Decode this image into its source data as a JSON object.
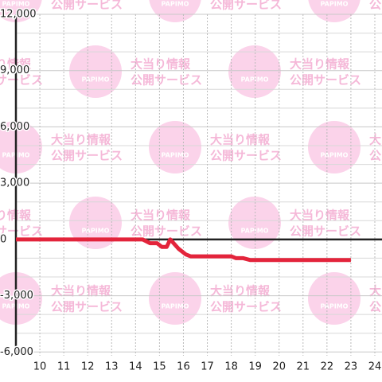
{
  "chart_data": {
    "type": "line",
    "watermark": {
      "line1": "大当り情報",
      "line2": "公開サービス",
      "logo": "PAPIMO"
    },
    "x": [
      9,
      14.3,
      14.6,
      14.9,
      15.1,
      15.3,
      15.45,
      15.8,
      16.1,
      16.3,
      18,
      18.2,
      18.5,
      18.8,
      23
    ],
    "series": [
      {
        "color": "#e3243b",
        "values": [
          0,
          0,
          -200,
          -200,
          -400,
          -400,
          0,
          -500,
          -800,
          -900,
          -900,
          -1000,
          -1000,
          -1100,
          -1100
        ]
      }
    ],
    "xlim": [
      9,
      24.3
    ],
    "xticks": [
      10,
      11,
      12,
      13,
      14,
      15,
      16,
      17,
      18,
      19,
      20,
      21,
      22,
      23,
      24
    ],
    "ylim": [
      -6200,
      12000
    ],
    "yticks": [
      {
        "value": 12000,
        "label": "12,000"
      },
      {
        "value": 9000,
        "label": "9,000"
      },
      {
        "value": 6000,
        "label": "6,000"
      },
      {
        "value": 3000,
        "label": "3,000"
      },
      0,
      {
        "value": -3000,
        "label": "-3,000"
      },
      {
        "value": -6000,
        "label": "-6,000"
      }
    ],
    "grid": true
  }
}
